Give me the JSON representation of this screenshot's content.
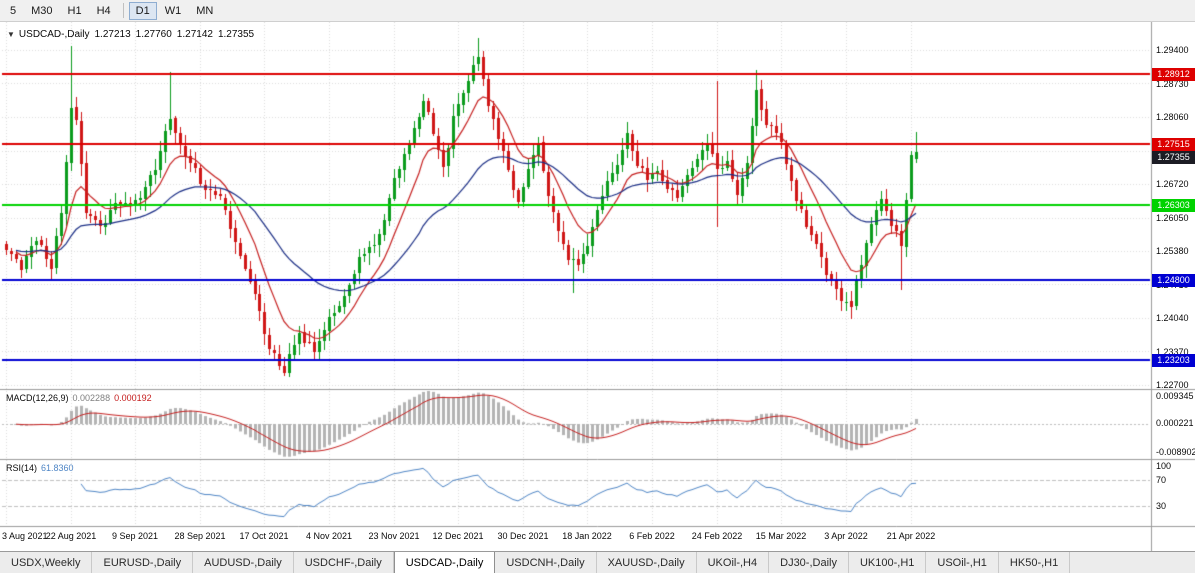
{
  "toolbar": {
    "timeframes": [
      {
        "label": "5",
        "active": false
      },
      {
        "label": "M30",
        "active": false
      },
      {
        "label": "H1",
        "active": false
      },
      {
        "label": "H4",
        "active": false
      },
      {
        "label": "D1",
        "active": true
      },
      {
        "label": "W1",
        "active": false
      },
      {
        "label": "MN",
        "active": false
      }
    ],
    "separator_after": "H4"
  },
  "chart_header": {
    "symbol_period": "USDCAD-,Daily",
    "open": "1.27213",
    "high": "1.27760",
    "low": "1.27142",
    "close": "1.27355"
  },
  "tabs": [
    {
      "label": "USDX,Weekly",
      "active": false
    },
    {
      "label": "EURUSD-,Daily",
      "active": false
    },
    {
      "label": "AUDUSD-,Daily",
      "active": false
    },
    {
      "label": "USDCHF-,Daily",
      "active": false
    },
    {
      "label": "USDCAD-,Daily",
      "active": true
    },
    {
      "label": "USDCNH-,Daily",
      "active": false
    },
    {
      "label": "XAUUSD-,Daily",
      "active": false
    },
    {
      "label": "UKOil-,H4",
      "active": false
    },
    {
      "label": "DJ30-,Daily",
      "active": false
    },
    {
      "label": "UK100-,H1",
      "active": false
    },
    {
      "label": "USOil-,H1",
      "active": false
    },
    {
      "label": "HK50-,H1",
      "active": false
    }
  ],
  "chart_data": {
    "type": "candlestick",
    "title": "USDCAD-,Daily",
    "seed": 11,
    "num_bars": 184,
    "label_every": 13,
    "y_range": [
      1.2264,
      1.2996
    ],
    "y_axis_ticks": [
      "1.29400",
      "1.28730",
      "1.28060",
      "1.27390",
      "1.26720",
      "1.26050",
      "1.25380",
      "1.24710",
      "1.24040",
      "1.23370",
      "1.22700"
    ],
    "x_labels": [
      "3 Aug 2021",
      "22 Aug 2021",
      "9 Sep 2021",
      "28 Sep 2021",
      "17 Oct 2021",
      "4 Nov 2021",
      "23 Nov 2021",
      "12 Dec 2021",
      "30 Dec 2021",
      "18 Jan 2022",
      "6 Feb 2022",
      "24 Feb 2022",
      "15 Mar 2022",
      "3 Apr 2022",
      "21 Apr 2022"
    ],
    "current_bar": {
      "open": 1.27213,
      "high": 1.2776,
      "low": 1.27142,
      "close": 1.27355
    },
    "close_waypoints": [
      [
        0,
        1.2545
      ],
      [
        3,
        1.2505
      ],
      [
        6,
        1.257
      ],
      [
        9,
        1.25
      ],
      [
        11,
        1.262
      ],
      [
        13,
        1.283
      ],
      [
        14,
        1.28
      ],
      [
        16,
        1.261
      ],
      [
        19,
        1.2595
      ],
      [
        22,
        1.2625
      ],
      [
        26,
        1.2645
      ],
      [
        30,
        1.269
      ],
      [
        33,
        1.2815
      ],
      [
        35,
        1.2745
      ],
      [
        39,
        1.268
      ],
      [
        43,
        1.2635
      ],
      [
        46,
        1.256
      ],
      [
        50,
        1.245
      ],
      [
        52,
        1.237
      ],
      [
        56,
        1.23
      ],
      [
        59,
        1.237
      ],
      [
        62,
        1.2345
      ],
      [
        65,
        1.24
      ],
      [
        68,
        1.245
      ],
      [
        71,
        1.252
      ],
      [
        74,
        1.2555
      ],
      [
        77,
        1.264
      ],
      [
        80,
        1.2735
      ],
      [
        82,
        1.2785
      ],
      [
        84,
        1.284
      ],
      [
        86,
        1.2765
      ],
      [
        88,
        1.2705
      ],
      [
        90,
        1.281
      ],
      [
        93,
        1.2875
      ],
      [
        95,
        1.293
      ],
      [
        97,
        1.283
      ],
      [
        99,
        1.276
      ],
      [
        101,
        1.27
      ],
      [
        103,
        1.264
      ],
      [
        105,
        1.2705
      ],
      [
        107,
        1.2745
      ],
      [
        109,
        1.265
      ],
      [
        111,
        1.258
      ],
      [
        113,
        1.252
      ],
      [
        115,
        1.2505
      ],
      [
        117,
        1.256
      ],
      [
        119,
        1.262
      ],
      [
        121,
        1.268
      ],
      [
        123,
        1.272
      ],
      [
        125,
        1.277
      ],
      [
        127,
        1.2705
      ],
      [
        129,
        1.268
      ],
      [
        131,
        1.27
      ],
      [
        133,
        1.2665
      ],
      [
        135,
        1.264
      ],
      [
        137,
        1.27
      ],
      [
        139,
        1.2725
      ],
      [
        141,
        1.275
      ],
      [
        143,
        1.27
      ],
      [
        145,
        1.2725
      ],
      [
        147,
        1.2645
      ],
      [
        149,
        1.2705
      ],
      [
        151,
        1.286
      ],
      [
        153,
        1.28
      ],
      [
        156,
        1.275
      ],
      [
        158,
        1.268
      ],
      [
        160,
        1.262
      ],
      [
        162,
        1.256
      ],
      [
        164,
        1.252
      ],
      [
        166,
        1.248
      ],
      [
        168,
        1.244
      ],
      [
        170,
        1.2425
      ],
      [
        172,
        1.252
      ],
      [
        174,
        1.26
      ],
      [
        176,
        1.263
      ],
      [
        178,
        1.2595
      ],
      [
        180,
        1.256
      ],
      [
        181,
        1.265
      ],
      [
        182,
        1.272
      ],
      [
        183,
        1.27355
      ]
    ],
    "bar_overrides": {
      "13": {
        "high": 1.2949
      },
      "33": {
        "high": 1.2896
      },
      "56": {
        "low": 1.2288
      },
      "95": {
        "high": 1.2964
      },
      "114": {
        "low": 1.2453
      },
      "125": {
        "high": 1.2796
      },
      "143": {
        "high": 1.2877,
        "low": 1.2587
      },
      "151": {
        "high": 1.2901
      },
      "170": {
        "low": 1.2403
      },
      "180": {
        "low": 1.246
      },
      "183": {
        "open": 1.27213,
        "high": 1.2776,
        "low": 1.27142,
        "close": 1.27355
      }
    },
    "hlines": [
      {
        "price": 1.28912,
        "label": "1.28912",
        "color": "#dd0000",
        "kind": "resistance"
      },
      {
        "price": 1.27515,
        "label": "1.27515",
        "color": "#dd0000",
        "kind": "resistance"
      },
      {
        "price": 1.26303,
        "label": "1.26303",
        "color": "#00d200",
        "kind": "support"
      },
      {
        "price": 1.248,
        "label": "1.24800",
        "color": "#0000d2",
        "kind": "support"
      },
      {
        "price": 1.23203,
        "label": "1.23203",
        "color": "#0000d2",
        "kind": "support"
      }
    ],
    "current_price": {
      "value": 1.27355,
      "label": "1.27355"
    },
    "indicators": {
      "macd": {
        "name": "MACD(12,26,9)",
        "main_value": "0.002288",
        "signal_value": "0.000192",
        "axis_labels": [
          "0.009345",
          "0.000221",
          "-0.008902"
        ],
        "axis_values": [
          0.009345,
          0.000221,
          -0.008902
        ]
      },
      "rsi": {
        "name": "RSI(14)",
        "value": "61.8360",
        "axis_labels": [
          "100",
          "70",
          "30"
        ],
        "axis_values": [
          100,
          70,
          30
        ],
        "levels": [
          70,
          30
        ]
      }
    },
    "colors": {
      "bull": "#0b9c1d",
      "bear": "#d01717",
      "ma_fast": "#c62020",
      "ma_slow": "#1c2f86",
      "grid": "#dcdcdc",
      "separator": "#9a9a9a",
      "macd_hist": "#b4b4b4",
      "macd_signal": "#c62020",
      "rsi_line": "#4f86c6",
      "level_dash": "#c0c0c0",
      "current_tag_bg": "#1c1c24"
    }
  }
}
